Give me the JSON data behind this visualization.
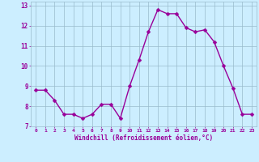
{
  "x": [
    0,
    1,
    2,
    3,
    4,
    5,
    6,
    7,
    8,
    9,
    10,
    11,
    12,
    13,
    14,
    15,
    16,
    17,
    18,
    19,
    20,
    21,
    22,
    23
  ],
  "y": [
    8.8,
    8.8,
    8.3,
    7.6,
    7.6,
    7.4,
    7.6,
    8.1,
    8.1,
    7.4,
    9.0,
    10.3,
    11.7,
    12.8,
    12.6,
    12.6,
    11.9,
    11.7,
    11.8,
    11.2,
    10.0,
    8.9,
    7.6,
    7.6
  ],
  "line_color": "#990099",
  "marker_color": "#990099",
  "bg_color": "#cceeff",
  "grid_color": "#99bbcc",
  "axis_color": "#990099",
  "tick_color": "#990099",
  "xlabel": "Windchill (Refroidissement éolien,°C)",
  "xlim": [
    -0.5,
    23.5
  ],
  "ylim": [
    7.0,
    13.2
  ],
  "yticks": [
    7,
    8,
    9,
    10,
    11,
    12,
    13
  ],
  "xticks": [
    0,
    1,
    2,
    3,
    4,
    5,
    6,
    7,
    8,
    9,
    10,
    11,
    12,
    13,
    14,
    15,
    16,
    17,
    18,
    19,
    20,
    21,
    22,
    23
  ],
  "marker_size": 2.5,
  "line_width": 1.0
}
